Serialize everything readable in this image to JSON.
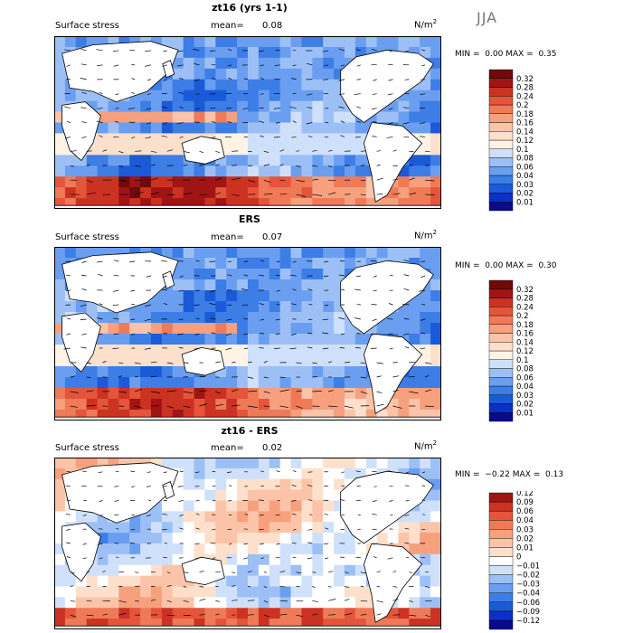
{
  "season": "JJA",
  "colors": {
    "abs": [
      "#0a0a8c",
      "#0c2fc8",
      "#1a5ad8",
      "#3c7de6",
      "#6a9ef0",
      "#9cc0f6",
      "#cfe0fb",
      "#fff3e6",
      "#fde0cc",
      "#fbc4a8",
      "#f6a07e",
      "#ef7a58",
      "#e4553b",
      "#cc3222",
      "#a01414",
      "#6e0a0a"
    ],
    "diff": [
      "#0a0a8c",
      "#0c2fc8",
      "#1a5ad8",
      "#3c7de6",
      "#6a9ef0",
      "#9cc0f6",
      "#cfe0fb",
      "#ffffff",
      "#fde0cc",
      "#fbc4a8",
      "#f6a07e",
      "#ef7a58",
      "#e4553b",
      "#cc3222",
      "#a01414"
    ]
  },
  "chart_data": [
    {
      "type": "heatmap",
      "title": "zt16 (yrs 1-1)",
      "subtitle": "Surface stress",
      "mean_label": "mean=",
      "mean_value": "0.08",
      "units": "N/m",
      "units_power": "2",
      "min_label": "MIN =",
      "min_value": "0.00",
      "max_label": "MAX =",
      "max_value": "0.35",
      "levels": [
        "0.01",
        "0.02",
        "0.03",
        "0.04",
        "0.06",
        "0.08",
        "0.1",
        "0.12",
        "0.14",
        "0.16",
        "0.18",
        "0.2",
        "0.24",
        "0.28",
        "0.32"
      ],
      "palette": "abs"
    },
    {
      "type": "heatmap",
      "title": "ERS",
      "subtitle": "Surface stress",
      "mean_label": "mean=",
      "mean_value": "0.07",
      "units": "N/m",
      "units_power": "2",
      "min_label": "MIN =",
      "min_value": "0.00",
      "max_label": "MAX =",
      "max_value": "0.30",
      "levels": [
        "0.01",
        "0.02",
        "0.03",
        "0.04",
        "0.06",
        "0.08",
        "0.1",
        "0.12",
        "0.14",
        "0.16",
        "0.18",
        "0.2",
        "0.24",
        "0.28",
        "0.32"
      ],
      "palette": "abs"
    },
    {
      "type": "heatmap",
      "title": "zt16 - ERS",
      "subtitle": "Surface stress",
      "mean_label": "mean=",
      "mean_value": "0.02",
      "units": "N/m",
      "units_power": "2",
      "min_label": "MIN =",
      "min_value": "−0.22",
      "max_label": "MAX =",
      "max_value": "0.13",
      "levels": [
        "−0.12",
        "−0.09",
        "−0.06",
        "−0.04",
        "−0.03",
        "−0.02",
        "−0.01",
        "0",
        "0.01",
        "0.02",
        "0.03",
        "0.04",
        "0.06",
        "0.09",
        "0.12"
      ],
      "palette": "diff"
    }
  ]
}
